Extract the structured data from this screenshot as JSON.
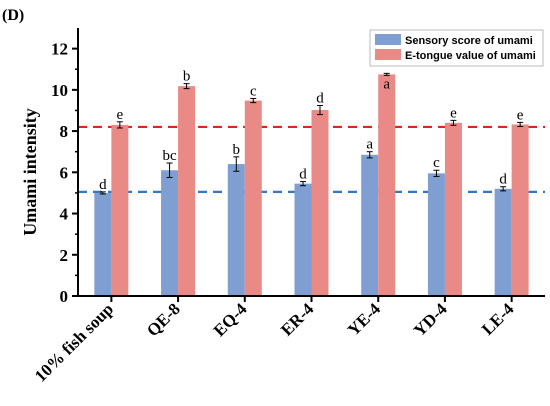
{
  "chart_data": {
    "type": "bar",
    "panel_label": "(D)",
    "ylabel": "Umami intensity",
    "ylim": [
      0,
      13
    ],
    "yticks": [
      "0",
      "2",
      "4",
      "6",
      "8",
      "10",
      "12"
    ],
    "categories": [
      "10% fish soup",
      "QE-8",
      "EQ-4",
      "ER-4",
      "YE-4",
      "YD-4",
      "LE-4"
    ],
    "series": [
      {
        "name": "Sensory score of umami",
        "color": "#7f9fd2",
        "values": [
          5.0,
          6.1,
          6.4,
          5.45,
          6.85,
          5.95,
          5.2
        ],
        "errors": [
          0.05,
          0.35,
          0.35,
          0.1,
          0.15,
          0.15,
          0.1
        ],
        "labels": [
          "d",
          "bc",
          "b",
          "d",
          "a",
          "c",
          "d"
        ]
      },
      {
        "name": "E-tongue value of umami",
        "color": "#ea8a86",
        "values": [
          8.3,
          10.18,
          9.48,
          9.02,
          10.75,
          8.4,
          8.32
        ],
        "errors": [
          0.15,
          0.12,
          0.1,
          0.22,
          0.05,
          0.12,
          0.1
        ],
        "labels": [
          "e",
          "b",
          "c",
          "d",
          "a",
          "e",
          "e"
        ]
      }
    ],
    "reference_lines": [
      {
        "value": 8.2,
        "color": "#e8201e"
      },
      {
        "value": 5.05,
        "color": "#2f78c4"
      }
    ],
    "legend": {
      "position": "top-right"
    }
  }
}
